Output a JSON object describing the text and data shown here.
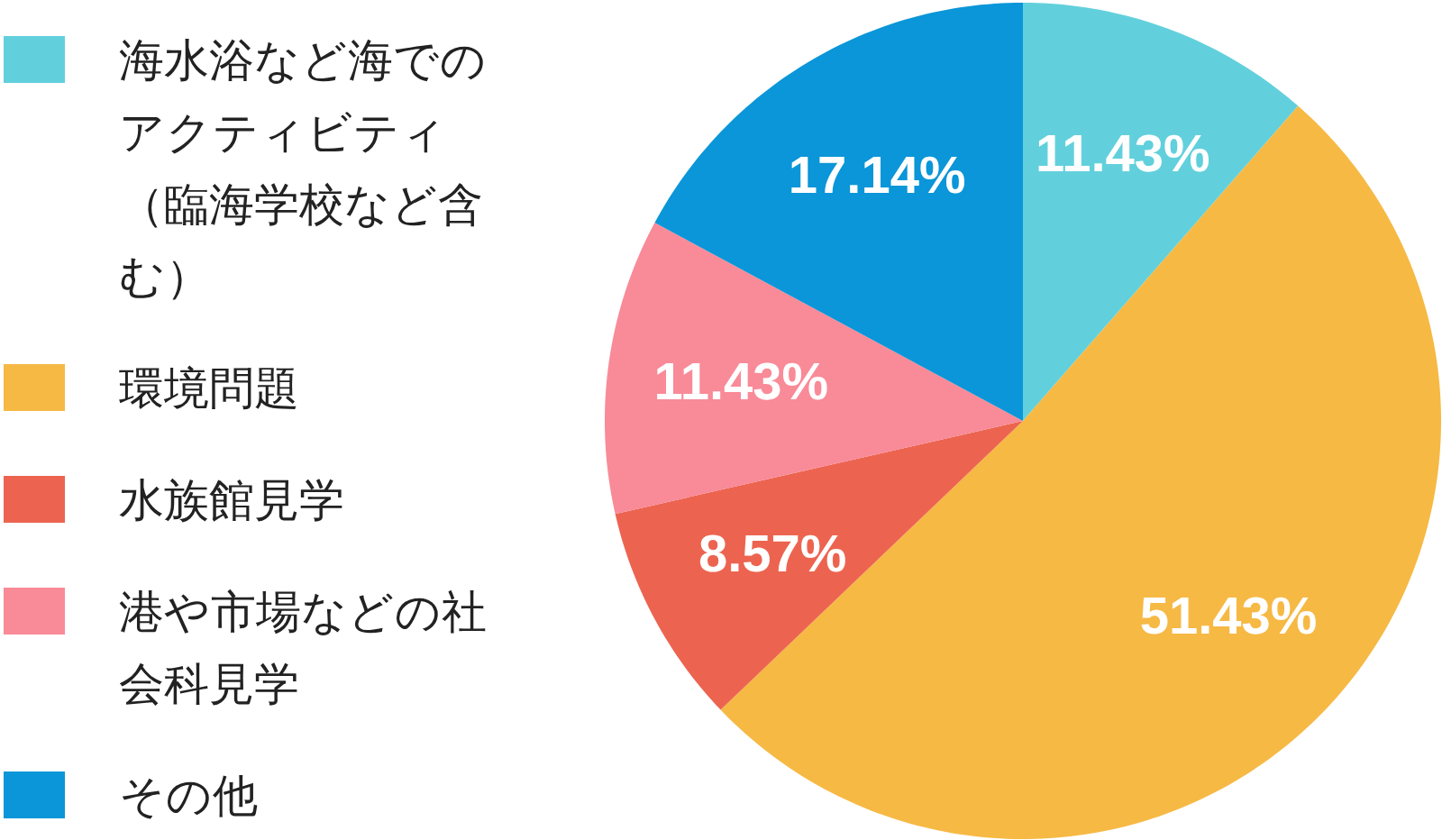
{
  "chart_data": {
    "type": "pie",
    "categories": [
      "海水浴など海でのアクティビティ（臨海学校など含む）",
      "環境問題",
      "水族館見学",
      "港や市場などの社会科見学",
      "その他"
    ],
    "values": [
      11.43,
      51.43,
      8.57,
      11.43,
      17.14
    ],
    "value_labels": [
      "11.43%",
      "51.43%",
      "8.57%",
      "11.43%",
      "17.14%"
    ],
    "colors": [
      "#62d0dc",
      "#f6b944",
      "#ec6450",
      "#f98a98",
      "#0a96d8"
    ],
    "legend": "left"
  }
}
